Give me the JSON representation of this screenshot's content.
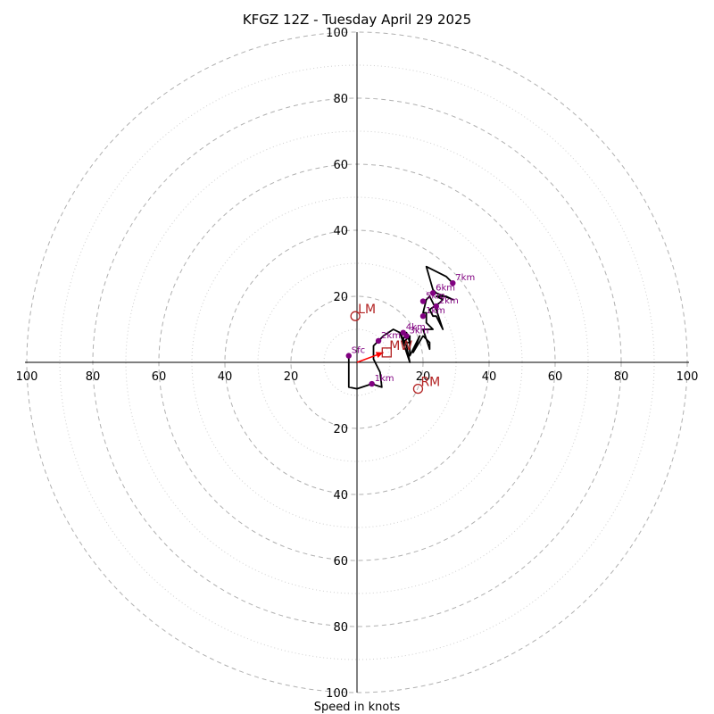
{
  "chart_data": {
    "type": "line",
    "title": "KFGZ 12Z - Tuesday April 29 2025",
    "xlabel": "Speed in knots",
    "range": [
      0,
      100
    ],
    "ring_major": [
      20,
      40,
      60,
      80,
      100
    ],
    "ring_minor": [
      10,
      30,
      50,
      70,
      90
    ],
    "tick_labels": [
      "20",
      "40",
      "60",
      "80",
      "100"
    ],
    "grid": true,
    "colors": {
      "hodograph": "#000000",
      "height_points": "#800080",
      "storm_motion": "#b22222",
      "shear_vector": "#ff0000",
      "rings": "#b0b0b0"
    },
    "hodograph": {
      "u": [
        -2.5,
        -2.5,
        -2.5,
        0,
        4.5,
        7.5,
        7,
        5,
        5,
        8,
        11,
        13,
        16,
        15,
        13,
        14,
        15,
        16,
        14,
        16,
        16,
        19,
        17,
        20,
        22,
        22,
        20,
        23,
        21,
        21,
        20,
        21,
        20,
        22,
        24,
        26,
        24,
        23,
        22,
        25,
        26,
        24,
        27,
        29,
        24,
        23,
        21,
        27,
        29
      ],
      "v": [
        2,
        -2.5,
        -7.5,
        -8,
        -6.5,
        -7.5,
        -3,
        1,
        5,
        8,
        10,
        9,
        0,
        5,
        9,
        7,
        9,
        6,
        6,
        8,
        2,
        8,
        3,
        8,
        6,
        4,
        10,
        10,
        12,
        15,
        15,
        19,
        18,
        20,
        16,
        10,
        14,
        14,
        16,
        18,
        19,
        20,
        20,
        19,
        21,
        22,
        29,
        26,
        24
      ]
    },
    "height_points": [
      {
        "label": "Sfc",
        "u": -2.5,
        "v": 2
      },
      {
        "label": "1km",
        "u": 4.5,
        "v": -6.5
      },
      {
        "label": "2km",
        "u": 6.5,
        "v": 6.5
      },
      {
        "label": "3km",
        "u": 15,
        "v": 8
      },
      {
        "label": "4km",
        "u": 14,
        "v": 9
      },
      {
        "label": "5km",
        "u": 20,
        "v": 18.5
      },
      {
        "label": "6km",
        "u": 23,
        "v": 21
      },
      {
        "label": "7km",
        "u": 29,
        "v": 24
      },
      {
        "label": "1km",
        "u": 20,
        "v": 14
      },
      {
        "label": "2km",
        "u": 24,
        "v": 17
      }
    ],
    "storm_motion": [
      {
        "label": "LM",
        "u": -0.5,
        "v": 14,
        "marker": "circle"
      },
      {
        "label": "MW",
        "u": 9,
        "v": 3,
        "marker": "square"
      },
      {
        "label": "RM",
        "u": 18.5,
        "v": -8,
        "marker": "circle"
      }
    ],
    "shear_vector": {
      "from": [
        0,
        0
      ],
      "to": [
        8,
        3
      ]
    }
  }
}
